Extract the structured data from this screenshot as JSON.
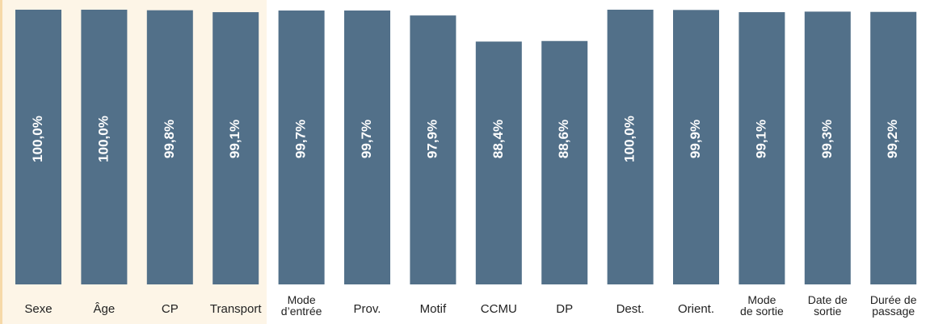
{
  "chart_data": {
    "type": "bar",
    "categories": [
      "Sexe",
      "Âge",
      "CP",
      "Transport",
      "Mode\nd’entrée",
      "Prov.",
      "Motif",
      "CCMU",
      "DP",
      "Dest.",
      "Orient.",
      "Mode\nde sortie",
      "Date de\nsortie",
      "Durée de\npassage"
    ],
    "values": [
      100,
      100,
      99.8,
      99.1,
      99.7,
      99.7,
      97.9,
      88.4,
      88.6,
      100,
      99.9,
      99.1,
      99.3,
      99.2
    ],
    "value_labels": [
      "100,0%",
      "100,0%",
      "99,8%",
      "99,1%",
      "99,7%",
      "99,7%",
      "97,9%",
      "88,4%",
      "88,6%",
      "100,0%",
      "99,9%",
      "99,1%",
      "99,3%",
      "99,2%"
    ],
    "color": "#527089",
    "ylim": [
      0,
      100
    ]
  }
}
